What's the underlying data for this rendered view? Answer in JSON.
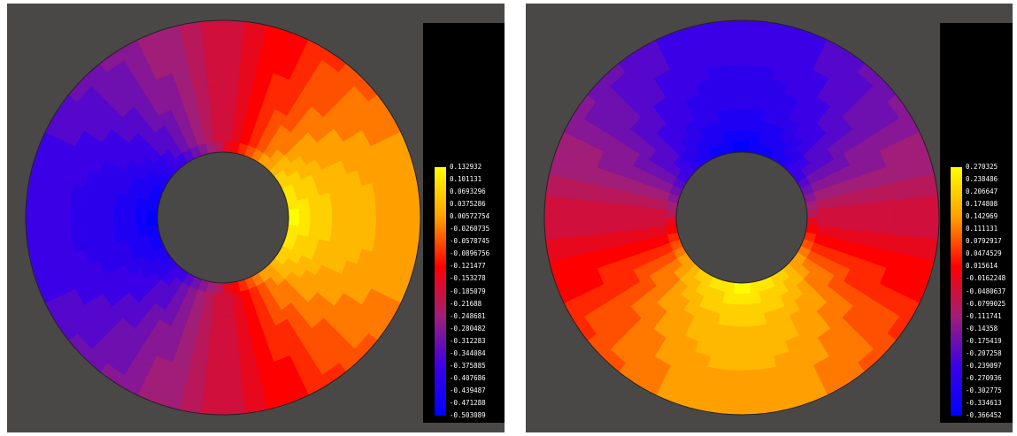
{
  "panels": [
    {
      "id": "left",
      "field_phase_deg": 0,
      "field_strength": 1.0,
      "colorbar": {
        "colors": [
          "#ffff00",
          "#ffa000",
          "#ff0000",
          "#a01e78",
          "#3c00e6",
          "#0000ff"
        ],
        "labels": [
          "0.132932",
          "0.101131",
          "0.0693296",
          "0.0375286",
          "0.00572754",
          "-0.0260735",
          "-0.0578745",
          "-0.0896756",
          "-0.121477",
          "-0.153278",
          "-0.185079",
          "-0.21688",
          "-0.248681",
          "-0.280482",
          "-0.312283",
          "-0.344084",
          "-0.375885",
          "-0.407686",
          "-0.439487",
          "-0.471288",
          "-0.503089"
        ]
      }
    },
    {
      "id": "right",
      "field_phase_deg": 90,
      "field_strength": 1.0,
      "colorbar": {
        "colors": [
          "#ffff00",
          "#ffa000",
          "#ff0000",
          "#a01e78",
          "#3c00e6",
          "#0000ff"
        ],
        "labels": [
          "0.270325",
          "0.238486",
          "0.206647",
          "0.174808",
          "0.142969",
          "0.111131",
          "0.0792917",
          "0.0474529",
          "0.015614",
          "-0.0162248",
          "-0.0480637",
          "-0.0799025",
          "-0.111741",
          "-0.14358",
          "-0.175419",
          "-0.207258",
          "-0.239097",
          "-0.270936",
          "-0.302775",
          "-0.334613",
          "-0.366452"
        ]
      }
    }
  ]
}
